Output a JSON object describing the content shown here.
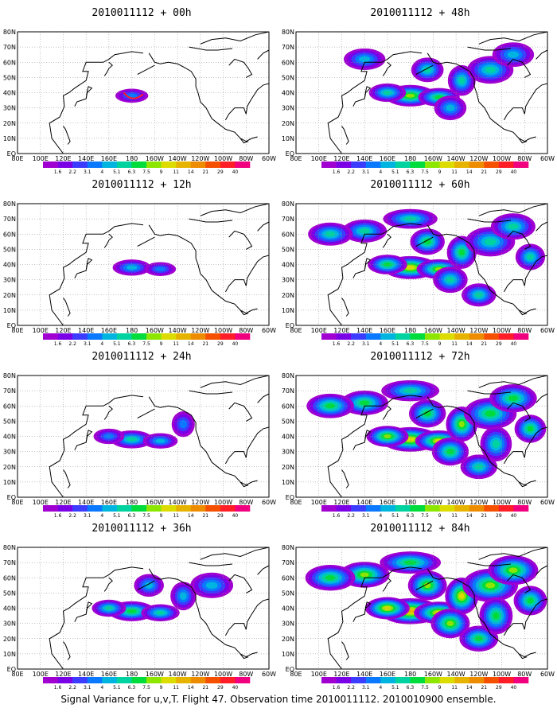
{
  "panels": [
    {
      "title": "2010011112 + 00h",
      "lead_hours": 0,
      "intensity": 0.15
    },
    {
      "title": "2010011112 + 12h",
      "lead_hours": 12,
      "intensity": 0.3
    },
    {
      "title": "2010011112 + 24h",
      "lead_hours": 24,
      "intensity": 0.42
    },
    {
      "title": "2010011112 + 36h",
      "lead_hours": 36,
      "intensity": 0.55
    },
    {
      "title": "2010011112 + 48h",
      "lead_hours": 48,
      "intensity": 0.66
    },
    {
      "title": "2010011112 + 60h",
      "lead_hours": 60,
      "intensity": 0.76
    },
    {
      "title": "2010011112 + 72h",
      "lead_hours": 72,
      "intensity": 0.86
    },
    {
      "title": "2010011112 + 84h",
      "lead_hours": 84,
      "intensity": 0.95
    }
  ],
  "lat_labels": [
    "EQ",
    "10N",
    "20N",
    "30N",
    "40N",
    "50N",
    "60N",
    "70N",
    "80N"
  ],
  "lon_labels": [
    "80E",
    "100E",
    "120E",
    "140E",
    "160E",
    "180",
    "160W",
    "140W",
    "120W",
    "100W",
    "80W",
    "60W"
  ],
  "colorbar": {
    "labels": [
      "1.6",
      "2.2",
      "3.1",
      "4",
      "5.1",
      "6.3",
      "7.5",
      "9",
      "11",
      "14",
      "21",
      "29",
      "40"
    ],
    "colors": [
      "#a000d0",
      "#7a00e6",
      "#3c3cff",
      "#0a78ff",
      "#00b4e0",
      "#00d2a0",
      "#00dc3c",
      "#8ce600",
      "#dcdc00",
      "#e6b400",
      "#ee8c00",
      "#f55000",
      "#ff1e28",
      "#f0007e"
    ]
  },
  "caption": "Signal Variance for u,v,T. Flight 47. Observation time 2010011112. 2010010900 ensemble."
}
